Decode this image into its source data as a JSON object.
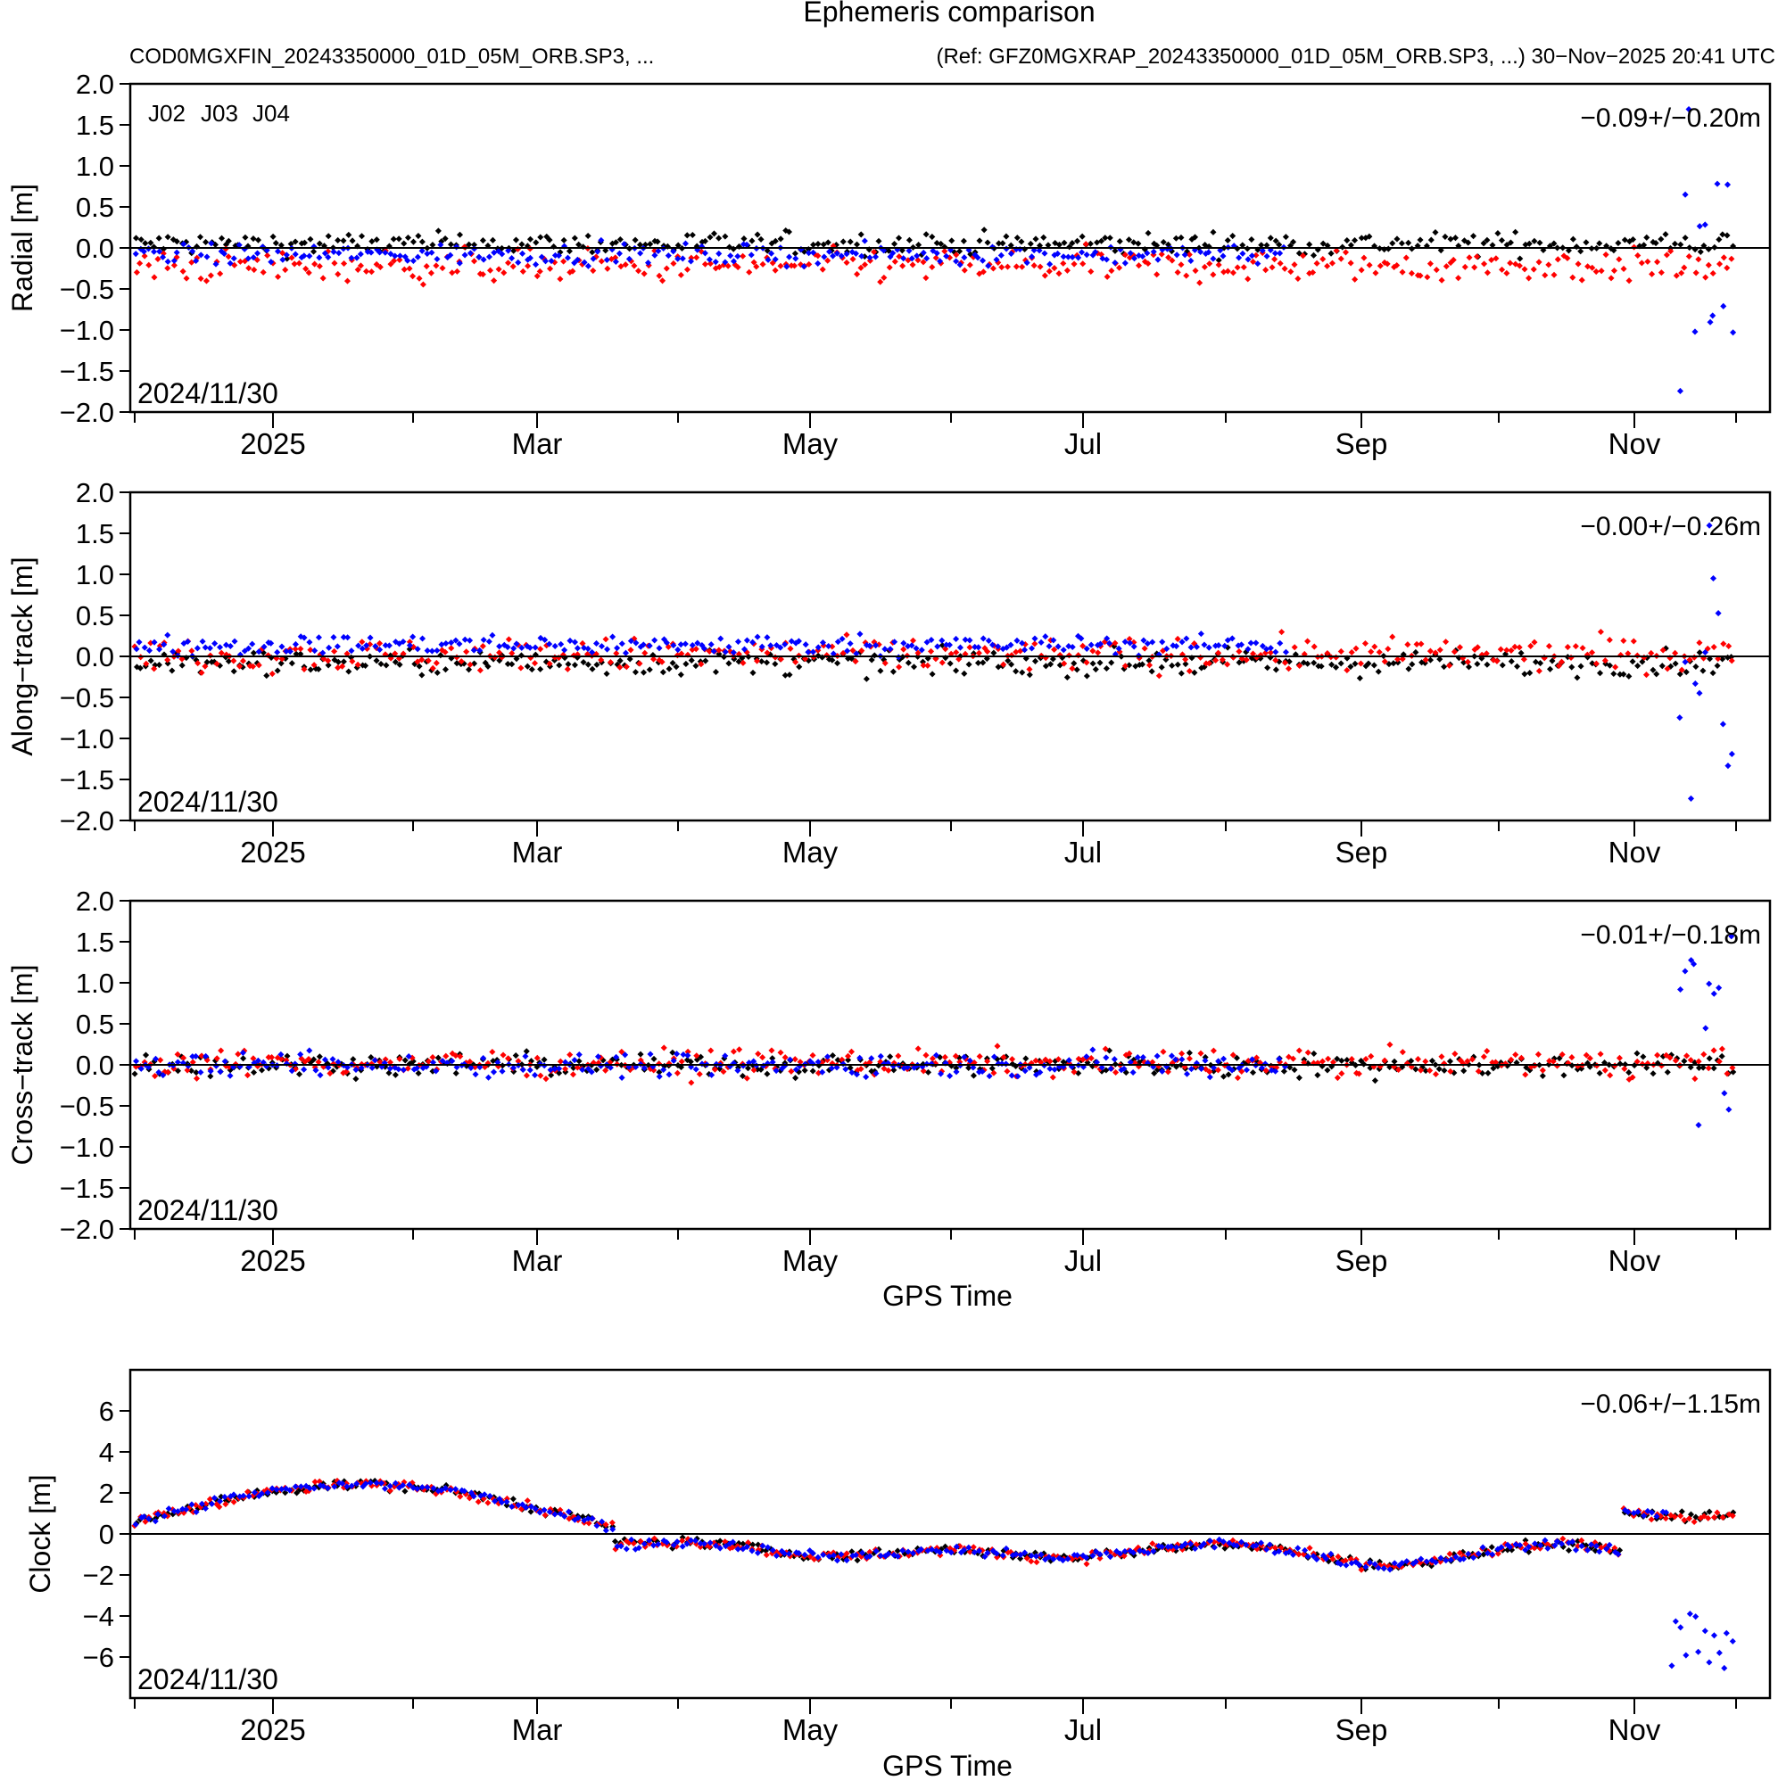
{
  "header": {
    "title": "Ephemeris comparison",
    "file_label": "COD0MGXFIN_20243350000_01D_05M_ORB.SP3, ...",
    "ref_label": "(Ref: GFZ0MGXRAP_20243350000_01D_05M_ORB.SP3, ...) 30−Nov−2025 20:41 UTC"
  },
  "legend": [
    {
      "label": "J02",
      "color": "#000000"
    },
    {
      "label": "J03",
      "color": "#ff0000"
    },
    {
      "label": "J04",
      "color": "#0000ff"
    }
  ],
  "x_axis": {
    "month_labels": [
      "2025",
      "Mar",
      "May",
      "Jul",
      "Sep",
      "Nov"
    ],
    "title": "GPS Time"
  },
  "chart_data": [
    {
      "type": "scatter",
      "id": "radial",
      "ylabel": "Radial [m]",
      "ylim": [
        -2.0,
        2.0
      ],
      "yticks": [
        "2.0",
        "1.5",
        "1.0",
        "0.5",
        "0.0",
        "−0.5",
        "−1.0",
        "−1.5",
        "−2.0"
      ],
      "stat": "−0.09+/−0.20m",
      "date": "2024/11/30",
      "xlabel": "",
      "series": [
        {
          "name": "J02",
          "color": "#000000",
          "center": 0.05,
          "spread": 0.14
        },
        {
          "name": "J03",
          "color": "#ff0000",
          "center": -0.22,
          "spread": 0.2
        },
        {
          "name": "J04",
          "color": "#0000ff",
          "center": -0.08,
          "spread": 0.12
        }
      ]
    },
    {
      "type": "scatter",
      "id": "along",
      "ylabel": "Along−track [m]",
      "ylim": [
        -2.0,
        2.0
      ],
      "yticks": [
        "2.0",
        "1.5",
        "1.0",
        "0.5",
        "0.0",
        "−0.5",
        "−1.0",
        "−1.5",
        "−2.0"
      ],
      "stat": "−0.00+/−0.26m",
      "date": "2024/11/30",
      "xlabel": "",
      "series": [
        {
          "name": "J02",
          "color": "#000000",
          "center": -0.08,
          "spread": 0.15
        },
        {
          "name": "J03",
          "color": "#ff0000",
          "center": 0.02,
          "spread": 0.2
        },
        {
          "name": "J04",
          "color": "#0000ff",
          "center": 0.14,
          "spread": 0.12
        }
      ]
    },
    {
      "type": "scatter",
      "id": "cross",
      "ylabel": "Cross−track [m]",
      "ylim": [
        -2.0,
        2.0
      ],
      "yticks": [
        "2.0",
        "1.5",
        "1.0",
        "0.5",
        "0.0",
        "−0.5",
        "−1.0",
        "−1.5",
        "−2.0"
      ],
      "stat": "−0.01+/−0.18m",
      "date": "2024/11/30",
      "xlabel": "GPS Time",
      "series": [
        {
          "name": "J02",
          "color": "#000000",
          "center": 0.0,
          "spread": 0.14
        },
        {
          "name": "J03",
          "color": "#ff0000",
          "center": 0.02,
          "spread": 0.16
        },
        {
          "name": "J04",
          "color": "#0000ff",
          "center": 0.0,
          "spread": 0.14
        }
      ]
    },
    {
      "type": "scatter",
      "id": "clock",
      "ylabel": "Clock [m]",
      "ylim": [
        -8,
        8
      ],
      "yticks": [
        "6",
        "4",
        "2",
        "0",
        "−2",
        "−4",
        "−6"
      ],
      "stat": "−0.06+/−1.15m",
      "date": "2024/11/30",
      "xlabel": "GPS Time",
      "series": [
        {
          "name": "J02",
          "color": "#000000"
        },
        {
          "name": "J03",
          "color": "#ff0000"
        },
        {
          "name": "J04",
          "color": "#0000ff"
        }
      ]
    }
  ]
}
